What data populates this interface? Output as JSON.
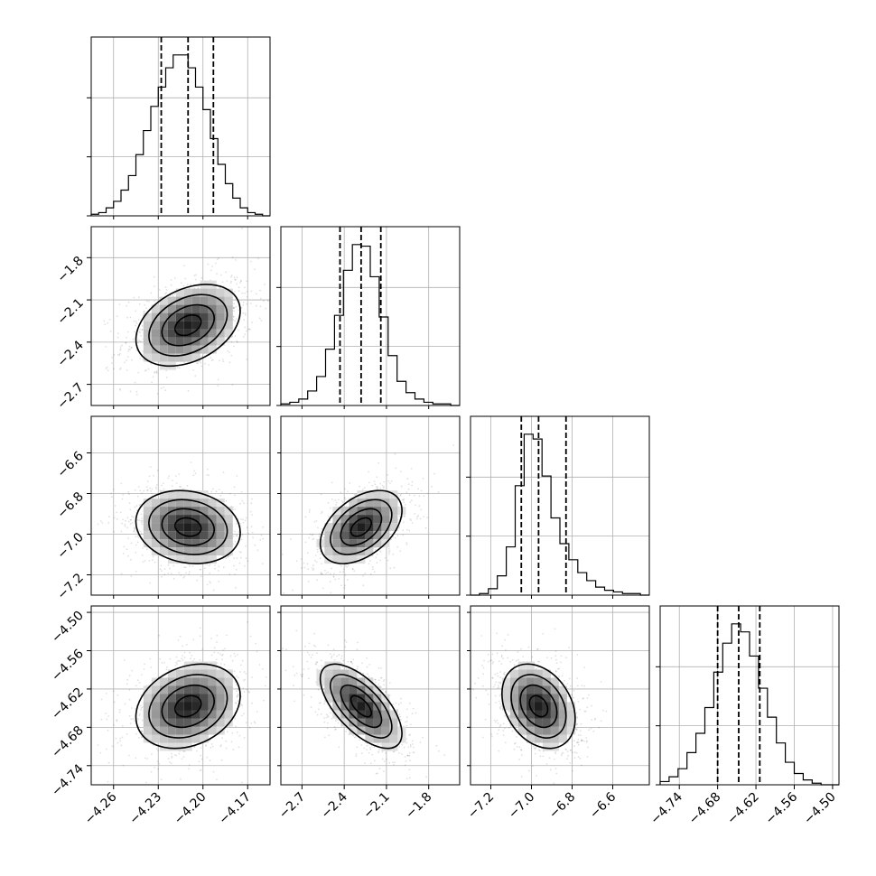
{
  "chart_data": {
    "type": "corner",
    "parameters": [
      {
        "ticks": [
          -4.26,
          -4.23,
          -4.2,
          -4.17
        ],
        "tick_labels": [
          "−4.26",
          "−4.23",
          "−4.20",
          "−4.17"
        ],
        "range": [
          -4.275,
          -4.155
        ],
        "median": -4.21,
        "quantiles": [
          -4.228,
          -4.21,
          -4.193
        ],
        "sigma": 0.0175,
        "hist_counts": [
          1,
          2,
          5,
          9,
          16,
          25,
          38,
          53,
          68,
          80,
          92,
          100,
          100,
          92,
          80,
          66,
          48,
          32,
          20,
          11,
          5,
          2,
          1,
          0
        ]
      },
      {
        "ticks": [
          -2.7,
          -2.4,
          -2.1,
          -1.8
        ],
        "tick_labels": [
          "−2.7",
          "−2.4",
          "−2.1",
          "−1.8"
        ],
        "range": [
          -2.85,
          -1.58
        ],
        "median": -2.28,
        "quantiles": [
          -2.43,
          -2.28,
          -2.14
        ],
        "sigma": 0.145,
        "hist_counts": [
          1,
          2,
          4,
          9,
          18,
          35,
          56,
          84,
          100,
          99,
          80,
          55,
          31,
          15,
          8,
          4,
          2,
          1,
          1,
          0
        ]
      },
      {
        "ticks": [
          -7.2,
          -7.0,
          -6.8,
          -6.6
        ],
        "tick_labels": [
          "−7.2",
          "−7.0",
          "−6.8",
          "−6.6"
        ],
        "range": [
          -7.3,
          -6.42
        ],
        "median": -6.965,
        "quantiles": [
          -7.05,
          -6.965,
          -6.83
        ],
        "sigma": 0.09,
        "hist_counts": [
          0,
          1,
          4,
          12,
          30,
          68,
          100,
          97,
          74,
          48,
          32,
          22,
          14,
          9,
          5,
          3,
          2,
          1,
          1,
          0
        ]
      },
      {
        "ticks": [
          -4.74,
          -4.68,
          -4.62,
          -4.56,
          -4.5
        ],
        "tick_labels": [
          "−4.74",
          "−4.68",
          "−4.62",
          "−4.56",
          "−4.50"
        ],
        "range": [
          -4.77,
          -4.49
        ],
        "median": -4.647,
        "quantiles": [
          -4.68,
          -4.647,
          -4.614
        ],
        "sigma": 0.033,
        "hist_counts": [
          2,
          5,
          10,
          20,
          32,
          48,
          70,
          88,
          100,
          95,
          80,
          60,
          42,
          26,
          14,
          7,
          3,
          1,
          0,
          0
        ]
      }
    ],
    "correlations": {
      "1-0": 0.35,
      "2-0": -0.15,
      "2-1": 0.45,
      "3-0": 0.25,
      "3-1": -0.65,
      "3-2": -0.3
    }
  }
}
